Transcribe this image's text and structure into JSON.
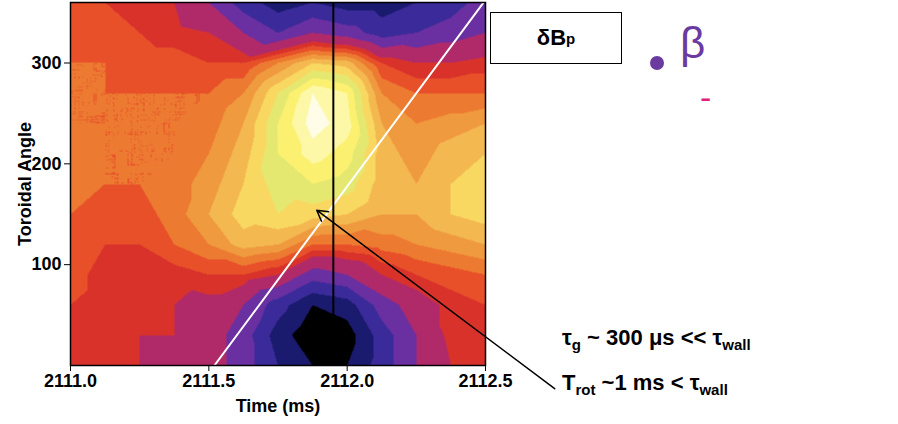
{
  "chart_data": {
    "type": "contour",
    "xlabel": "Time (ms)",
    "ylabel": "Toroidal Angle",
    "xlim": [
      2111.0,
      2112.5
    ],
    "xticks": [
      {
        "value": 2111.0,
        "label": "2111.0"
      },
      {
        "value": 2111.5,
        "label": "2111.5"
      },
      {
        "value": 2112.0,
        "label": "2112.0"
      },
      {
        "value": 2112.5,
        "label": "2112.5"
      }
    ],
    "ylim": [
      0,
      360
    ],
    "yticks": [
      100,
      200,
      300
    ],
    "heatmap": {
      "x": [
        2111.0,
        2111.125,
        2111.25,
        2111.375,
        2111.5,
        2111.625,
        2111.75,
        2111.875,
        2112.0,
        2112.125,
        2112.25,
        2112.375,
        2112.5
      ],
      "y": [
        0,
        30,
        60,
        90,
        120,
        150,
        180,
        210,
        240,
        270,
        300,
        330,
        360
      ],
      "values": [
        [
          0.1,
          0.05,
          0,
          -0.05,
          -0.1,
          -0.3,
          -0.6,
          -0.8,
          -0.8,
          -0.5,
          -0.2,
          0.0,
          0.1
        ],
        [
          0.1,
          0.05,
          0,
          0,
          -0.1,
          -0.3,
          -0.7,
          -0.95,
          -0.9,
          -0.5,
          -0.2,
          0.05,
          0.1
        ],
        [
          0.1,
          0.05,
          0,
          0,
          -0.05,
          -0.2,
          -0.5,
          -0.8,
          -0.7,
          -0.3,
          -0.1,
          0.05,
          0.1
        ],
        [
          0.15,
          0.05,
          0,
          0.05,
          0.1,
          0.1,
          0,
          -0.3,
          -0.2,
          0,
          0.1,
          0.15,
          0.2
        ],
        [
          0.2,
          0.1,
          0.1,
          0.2,
          0.3,
          0.45,
          0.4,
          0.2,
          0.2,
          0.25,
          0.3,
          0.35,
          0.4
        ],
        [
          0.2,
          0.15,
          0.15,
          0.25,
          0.4,
          0.55,
          0.6,
          0.55,
          0.5,
          0.4,
          0.4,
          0.5,
          0.55
        ],
        [
          0.25,
          0.2,
          0.2,
          0.25,
          0.35,
          0.5,
          0.65,
          0.7,
          0.65,
          0.45,
          0.4,
          0.5,
          0.55
        ],
        [
          0.25,
          0.2,
          0.2,
          0.2,
          0.3,
          0.45,
          0.7,
          0.85,
          0.75,
          0.45,
          0.35,
          0.45,
          0.5
        ],
        [
          0.2,
          0.2,
          0.2,
          0.2,
          0.25,
          0.4,
          0.7,
          0.95,
          0.85,
          0.4,
          0.3,
          0.35,
          0.4
        ],
        [
          0.2,
          0.2,
          0.2,
          0.2,
          0.2,
          0.3,
          0.6,
          0.9,
          0.8,
          0.3,
          0.2,
          0.2,
          0.2
        ],
        [
          0.2,
          0.2,
          0.15,
          0.15,
          0.1,
          0.1,
          0.3,
          0.5,
          0.45,
          0.1,
          0,
          0,
          0.05
        ],
        [
          0.15,
          0.15,
          0.1,
          0.05,
          0,
          -0.2,
          -0.4,
          -0.2,
          -0.3,
          -0.5,
          -0.4,
          -0.3,
          -0.2
        ],
        [
          0.1,
          0.1,
          0.05,
          0,
          -0.2,
          -0.5,
          -0.7,
          -0.6,
          -0.7,
          -0.7,
          -0.6,
          -0.5,
          -0.3
        ]
      ],
      "levels": [
        -0.8,
        -0.6,
        -0.4,
        -0.2,
        0,
        0.1,
        0.2,
        0.3,
        0.4,
        0.5,
        0.6,
        0.7,
        0.8,
        0.9
      ],
      "colors": [
        "#000000",
        "#1a1a6e",
        "#3a2a9a",
        "#6a2fa0",
        "#b02a6a",
        "#d8322a",
        "#e8502a",
        "#ec7a30",
        "#f09a40",
        "#f4b850",
        "#f8d860",
        "#e4e870",
        "#fbf070",
        "#fdf8a8",
        "#fffde8"
      ]
    },
    "lines": [
      {
        "x": [
          2111.52,
          2112.52
        ],
        "y": [
          0,
          370
        ],
        "color": "#ffffff"
      },
      {
        "x": [
          2111.95,
          2111.95
        ],
        "y": [
          0,
          360
        ],
        "color": "#000000"
      }
    ],
    "panel_label": [
      {
        "text": "δB"
      },
      {
        "text": "p",
        "sub": true
      }
    ],
    "annotations": [
      {
        "segments": [
          {
            "text": "τ"
          },
          {
            "text": "g",
            "sub": true
          },
          {
            "text": " ~ 300 μs << τ"
          },
          {
            "text": "wall",
            "sub": true
          }
        ]
      },
      {
        "segments": [
          {
            "text": "T"
          },
          {
            "text": "rot",
            "sub": true
          },
          {
            "text": " ~1 ms < τ"
          },
          {
            "text": "wall",
            "sub": true
          }
        ],
        "arrow": {
          "from": [
            2112.75,
            -23
          ],
          "to": [
            2111.89,
            154
          ]
        }
      }
    ],
    "fragments": [
      {
        "text": "β",
        "color": "#6a3aa0"
      },
      {
        "text": "-",
        "color": "#e0207a"
      }
    ]
  }
}
